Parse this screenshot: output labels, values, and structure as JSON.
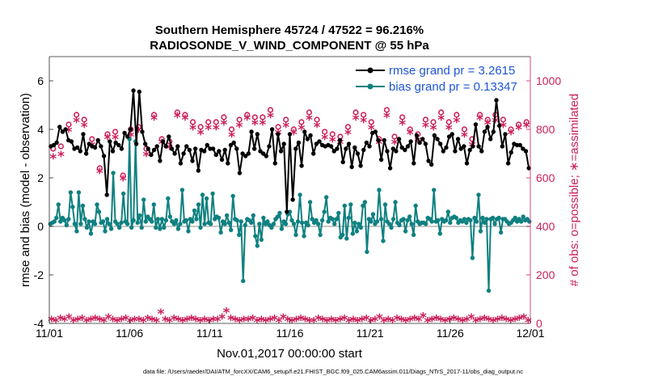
{
  "chart_data": {
    "type": "line",
    "title_line1": "Southern Hemisphere 45724 / 47522 = 96.216%",
    "title_line2": "RADIOSONDE_V_WIND_COMPONENT @ 55 hPa",
    "xlabel": "Nov.01,2017 00:00:00 start",
    "ylabel_left": "rmse and bias (model - observation)",
    "ylabel_right": "# of obs: o=possible; ∗=assimilated",
    "footnote": "data file: /Users/raeder/DAI/ATM_forcXX/CAM6_setup/f.e21.FHIST_BGC.f09_025.CAM6assim.011/Diags_NTrS_2017-11/obs_diag_output.nc",
    "x_ticks": [
      "11/01",
      "11/06",
      "11/11",
      "11/16",
      "11/21",
      "11/26",
      "12/01"
    ],
    "x_tick_days": [
      0,
      5,
      10,
      15,
      20,
      25,
      30
    ],
    "xlim": [
      0,
      30
    ],
    "y_left_ticks": [
      "-4",
      "-2",
      "0",
      "2",
      "4",
      "6"
    ],
    "y_left_tick_values": [
      -4,
      -2,
      0,
      2,
      4,
      6
    ],
    "ylim_left": [
      -4,
      7
    ],
    "y_right_ticks": [
      "0",
      "200",
      "400",
      "600",
      "800",
      "1000"
    ],
    "y_right_tick_values": [
      0,
      200,
      400,
      600,
      800,
      1000
    ],
    "ylim_right": [
      0,
      1100
    ],
    "legend_location": "top-right",
    "colors": {
      "rmse": "#000000",
      "bias": "#0f8080",
      "obs": "#cc1f5a",
      "zero_line": "#c8c8c8",
      "legend_text": "#1f56d6"
    },
    "series": [
      {
        "name": "rmse grand pr = 3.2615",
        "axis": "left",
        "values": [
          3.3,
          3.35,
          3.45,
          4.1,
          3.9,
          4.0,
          3.55,
          3.5,
          3.2,
          3.25,
          3.1,
          3.8,
          3.0,
          3.4,
          3.3,
          3.25,
          3.55,
          3.3,
          2.9,
          1.3,
          3.5,
          3.1,
          3.45,
          3.35,
          3.2,
          3.85,
          3.7,
          4.0,
          5.6,
          3.4,
          5.55,
          3.9,
          3.4,
          3.2,
          2.95,
          3.15,
          3.3,
          2.7,
          3.5,
          3.3,
          3.7,
          3.2,
          3.0,
          3.3,
          2.6,
          3.0,
          3.3,
          3.15,
          2.7,
          3.2,
          2.3,
          3.15,
          3.1,
          3.35,
          3.2,
          3.2,
          2.95,
          3.1,
          2.75,
          3.15,
          2.6,
          3.35,
          3.45,
          3.2,
          2.2,
          3.0,
          2.9,
          3.0,
          3.9,
          3.2,
          3.8,
          3.1,
          3.0,
          2.9,
          3.3,
          4.0,
          2.6,
          3.8,
          3.1,
          3.4,
          0.6,
          3.8,
          1.1,
          3.2,
          3.45,
          2.5,
          3.9,
          3.6,
          3.75,
          3.0,
          3.4,
          3.5,
          3.35,
          3.3,
          3.35,
          3.3,
          3.1,
          3.2,
          3.55,
          2.65,
          3.2,
          3.4,
          2.45,
          3.25,
          3.0,
          2.5,
          3.15,
          3.45,
          3.3,
          3.85,
          3.9,
          3.55,
          2.75,
          3.55,
          3.1,
          2.4,
          3.2,
          3.1,
          3.6,
          3.25,
          3.15,
          3.3,
          3.5,
          2.6,
          3.75,
          3.45,
          3.6,
          3.4,
          2.7,
          2.55,
          3.75,
          3.6,
          3.4,
          3.1,
          3.25,
          3.7,
          3.8,
          3.1,
          3.6,
          3.2,
          3.3,
          2.6,
          3.15,
          3.3,
          4.2,
          3.3,
          3.1,
          3.9,
          4.1,
          3.6,
          3.9,
          5.2,
          4.15,
          3.3,
          3.8,
          2.6,
          3.05,
          3.4,
          3.35,
          3.35,
          3.2,
          3.1,
          2.4
        ]
      },
      {
        "name": "bias grand pr = 0.13347",
        "axis": "left",
        "values": [
          0.1,
          0.15,
          0.2,
          0.35,
          0.9,
          0.2,
          0.35,
          0.25,
          0.05,
          0.3,
          1.4,
          0.8,
          0.1,
          -0.2,
          1.4,
          0.1,
          0.85,
          0.3,
          -0.05,
          0.2,
          -0.3,
          0.2,
          0.1,
          0.9,
          0.6,
          0.15,
          0.2,
          -0.2,
          0.3,
          0.1,
          -0.1,
          2.2,
          0.2,
          0.1,
          -0.05,
          0.15,
          1.35,
          0.2,
          0.1,
          3.6,
          -0.05,
          0.25,
          3.5,
          0.15,
          0.45,
          -0.05,
          1.1,
          0.2,
          0.4,
          0.3,
          0.2,
          0.9,
          -0.05,
          0.3,
          -0.1,
          0.3,
          -0.05,
          0.25,
          1.15,
          0.4,
          0.2,
          0.1,
          0.25,
          -0.1,
          0.1,
          1.5,
          0.2,
          0.25,
          -0.2,
          0.3,
          0.2,
          0.65,
          0.3,
          0.9,
          -0.05,
          1.3,
          0.1,
          1.15,
          0.15,
          0.1,
          1.35,
          0.3,
          0.4,
          0.35,
          -0.25,
          0.2,
          0.1,
          0.45,
          0.15,
          -0.15,
          1.25,
          0.3,
          0.25,
          -0.35,
          0.2,
          -2.25,
          0.05,
          0.3,
          0.25,
          0.15,
          0.45,
          -0.4,
          -0.8,
          0.1,
          -0.55,
          0.35,
          0.1,
          0.2,
          0.05,
          -0.05,
          0.1,
          0.3,
          0.4,
          0.55,
          -0.1,
          0.2,
          0.1,
          0.5,
          0.6,
          0.25,
          0.1,
          -0.35,
          0.2,
          1.3,
          0.15,
          -0.4,
          0.15,
          0.05,
          1.0,
          0.3,
          0.15,
          0.25,
          0.1,
          -0.35,
          0.25,
          0.6,
          1.2,
          0.2,
          0.35,
          0.3,
          0.1,
          0.3,
          0.55,
          -0.45,
          -0.35,
          0.85,
          -0.5,
          0.35,
          0.9,
          -0.3,
          0.15,
          -0.2,
          0.1,
          -0.05,
          0.85,
          1.0,
          -1.05,
          0.3,
          0.2,
          0.5,
          0.1,
          0.2,
          1.5,
          0.3,
          -0.6,
          0.9,
          0.2,
          0.1,
          -0.05,
          0.3,
          1.0,
          0.15,
          0.05,
          0.25,
          0.3,
          -0.2,
          0.25,
          0.4,
          0.1,
          -0.35,
          0.85,
          0.2,
          0.1,
          0.15,
          0.15,
          0.1,
          0.35,
          0.3,
          0.2,
          1.5,
          0.2,
          0.25,
          -0.3,
          0.3,
          0.2,
          0.25,
          0.6,
          0.15,
          0.35,
          0.4,
          0.35,
          0.15,
          0.25,
          0.2,
          0.3,
          0.15,
          0.3,
          0.25,
          -1.3,
          0.35,
          0.2,
          1.3,
          -0.2,
          0.35,
          0.15,
          0.3,
          -2.65,
          0.3,
          0.35,
          0.1,
          0.3,
          0.35,
          -0.25,
          0.3,
          0.3,
          0.2,
          0.1,
          0.15,
          0.25,
          0.35,
          0.2,
          0.3,
          0.2,
          0.4,
          0.25,
          0.3,
          0.2
        ]
      },
      {
        "name": "obs possible",
        "axis": "right",
        "marker": "o",
        "values": [
          720,
          730,
          820,
          860,
          840,
          760,
          640,
          780,
          790,
          610,
          800,
          810,
          720,
          860,
          760,
          750,
          870,
          860,
          830,
          810,
          830,
          830,
          850,
          800,
          840,
          860,
          850,
          850,
          880,
          810,
          840,
          800,
          830,
          870,
          840,
          790,
          780,
          770,
          810,
          870,
          860,
          830,
          760,
          880,
          770,
          850,
          800,
          780,
          840,
          830,
          870,
          830,
          860,
          800,
          760,
          860,
          840,
          860,
          840,
          800,
          820,
          830
        ]
      },
      {
        "name": "obs assimilated",
        "axis": "right",
        "marker": "*",
        "values": [
          680,
          690,
          790,
          830,
          810,
          730,
          620,
          760,
          760,
          590,
          770,
          790,
          690,
          840,
          740,
          720,
          850,
          840,
          800,
          780,
          800,
          800,
          820,
          770,
          810,
          840,
          820,
          820,
          850,
          780,
          810,
          780,
          800,
          840,
          810,
          760,
          750,
          740,
          780,
          840,
          830,
          800,
          740,
          850,
          740,
          820,
          780,
          750,
          810,
          800,
          840,
          800,
          830,
          770,
          730,
          840,
          820,
          830,
          810,
          780,
          800,
          810
        ]
      },
      {
        "name": "obs baseline",
        "axis": "right",
        "marker": "*",
        "values": [
          10,
          5,
          15,
          10,
          20,
          5,
          10,
          15,
          5,
          10,
          15,
          10,
          5,
          20,
          10,
          5,
          10,
          15,
          5,
          10,
          10,
          5,
          15,
          10,
          5,
          40,
          10,
          5,
          15,
          10,
          5,
          10,
          15,
          10,
          5,
          10,
          5,
          10,
          10,
          20,
          45,
          15,
          10,
          5,
          10,
          10,
          15,
          5,
          10,
          5,
          10,
          15,
          5,
          20,
          10,
          5,
          10,
          15,
          10,
          5,
          5,
          15,
          10,
          5,
          10,
          5,
          10,
          15,
          5,
          10,
          5,
          10,
          15,
          5,
          10,
          20,
          5,
          10,
          5,
          15,
          10,
          5,
          10,
          15,
          10,
          25,
          5,
          10,
          15,
          10,
          5,
          10,
          15,
          10,
          5,
          10,
          20,
          5,
          10,
          15,
          10,
          5,
          10,
          15,
          10,
          5,
          10,
          15,
          20,
          5
        ]
      }
    ]
  }
}
